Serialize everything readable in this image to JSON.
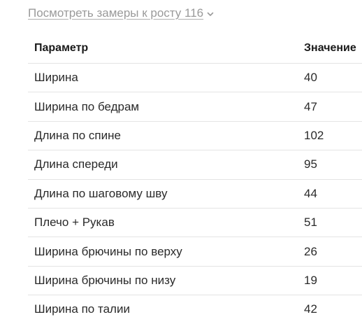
{
  "measurements_toggle": {
    "label": "Посмотреть замеры к росту 116"
  },
  "table": {
    "headers": {
      "parameter": "Параметр",
      "value": "Значение"
    },
    "rows": [
      {
        "parameter": "Ширина",
        "value": "40"
      },
      {
        "parameter": "Ширина по бедрам",
        "value": "47"
      },
      {
        "parameter": "Длина по спине",
        "value": "102"
      },
      {
        "parameter": "Длина спереди",
        "value": "95"
      },
      {
        "parameter": "Длина по шаговому шву",
        "value": "44"
      },
      {
        "parameter": "Плечо + Рукав",
        "value": "51"
      },
      {
        "parameter": "Ширина брючины по верху",
        "value": "26"
      },
      {
        "parameter": "Ширина брючины по низу",
        "value": "19"
      },
      {
        "parameter": "Ширина по талии",
        "value": "42"
      }
    ]
  }
}
